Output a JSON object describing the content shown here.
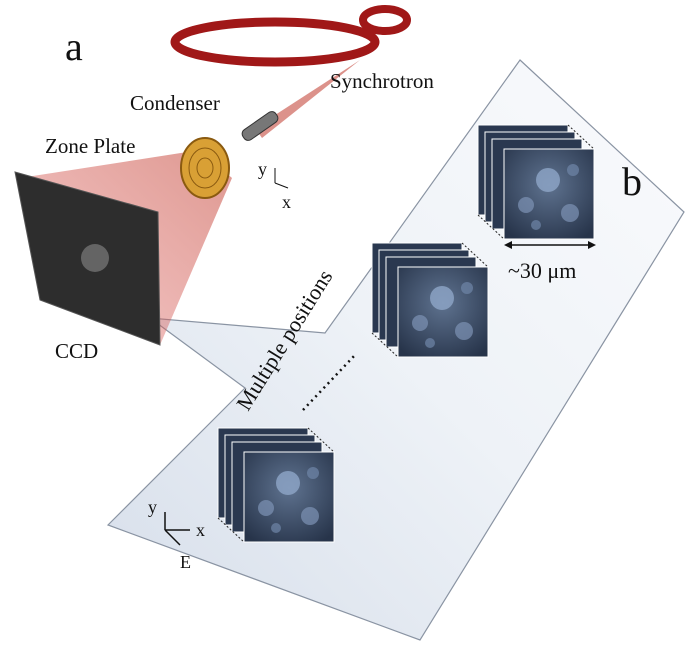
{
  "panel_a": {
    "label": "a",
    "synchrotron": "Synchrotron",
    "condenser": "Condenser",
    "zone_plate": "Zone Plate",
    "axis_y": "y",
    "axis_x": "x",
    "detector": "CCD"
  },
  "panel_b": {
    "label": "b",
    "scale": "~30 μm",
    "caption": "Multiple positions",
    "axis_y": "y",
    "axis_x": "x",
    "axis_e": "E"
  }
}
